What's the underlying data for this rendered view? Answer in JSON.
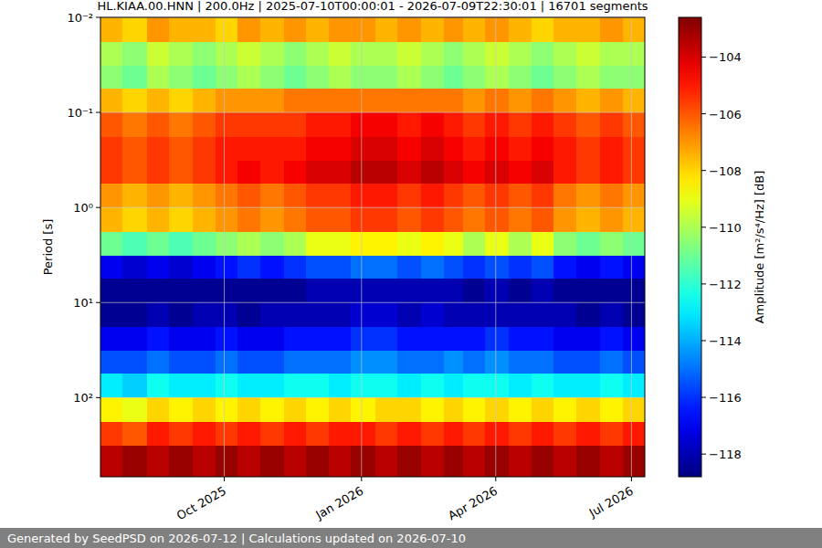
{
  "chart_data": {
    "type": "heatmap",
    "title": "HL.KIAA.00.HNN | 200.0Hz | 2025-07-10T00:00:01 - 2026-07-09T22:30:01 | 16701 segments",
    "y_label": "Period [s]",
    "footer": "Generated by SeedPSD on 2026-07-12 | Calculations updated on 2026-07-10",
    "log": "y",
    "grid": true,
    "xlim": [
      "2025-07-10T00:00:01",
      "2026-07-09T22:30:01"
    ],
    "xticks": [
      {
        "value": "2025-10-01",
        "label": "Oct 2025"
      },
      {
        "value": "2026-01-01",
        "label": "Jan 2026"
      },
      {
        "value": "2026-04-01",
        "label": "Apr 2026"
      },
      {
        "value": "2026-07-01",
        "label": "Jul 2026"
      }
    ],
    "ylim": [
      680,
      0.01
    ],
    "yticks": [
      {
        "value": 0.01,
        "label": "10⁻²"
      },
      {
        "value": 0.1,
        "label": "10⁻¹"
      },
      {
        "value": 1,
        "label": "10⁰"
      },
      {
        "value": 10,
        "label": "10¹"
      },
      {
        "value": 100,
        "label": "10²"
      }
    ],
    "x_edges": [
      "2025-07-10T00:00:01",
      "2025-07-25",
      "2025-08-10",
      "2025-08-25",
      "2025-09-10",
      "2025-09-25",
      "2025-10-10",
      "2025-10-25",
      "2025-11-10",
      "2025-11-25",
      "2025-12-10",
      "2025-12-25",
      "2026-01-10",
      "2026-01-25",
      "2026-02-10",
      "2026-02-25",
      "2026-03-10",
      "2026-03-25",
      "2026-04-10",
      "2026-04-25",
      "2026-05-10",
      "2026-05-25",
      "2026-06-10",
      "2026-06-25",
      "2026-07-09T22:30:01"
    ],
    "y_edges": [
      0.01,
      0.018,
      0.032,
      0.056,
      0.1,
      0.18,
      0.32,
      0.56,
      1,
      1.8,
      3.2,
      5.6,
      10,
      18,
      32,
      56,
      100,
      180,
      320,
      680
    ],
    "cells": [
      [
        -107.5,
        -108,
        -107,
        -107.5,
        -107.5,
        -108,
        -107,
        -107.5,
        -107,
        -107.5,
        -107,
        -107,
        -107.5,
        -107,
        -107.5,
        -107,
        -107.5,
        -107,
        -107.5,
        -108,
        -107.5,
        -107.5,
        -107,
        -107.5
      ],
      [
        -110,
        -110.5,
        -109.5,
        -110,
        -110.5,
        -110,
        -109.5,
        -110,
        -110.5,
        -110,
        -109.5,
        -110,
        -110,
        -109.5,
        -110,
        -110.5,
        -110,
        -109.5,
        -110,
        -110.5,
        -110,
        -109.5,
        -110,
        -110
      ],
      [
        -110.5,
        -111,
        -110,
        -110.5,
        -111,
        -110.5,
        -110,
        -110.5,
        -111,
        -110.5,
        -110,
        -110.5,
        -110.5,
        -110,
        -110.5,
        -111,
        -110.5,
        -110,
        -110.5,
        -111,
        -110.5,
        -110,
        -110.5,
        -110.5
      ],
      [
        -107.5,
        -108,
        -107.5,
        -108,
        -107.5,
        -107,
        -107,
        -107,
        -106.5,
        -106.5,
        -106.5,
        -106.5,
        -106.5,
        -106.5,
        -106.5,
        -106.5,
        -107,
        -106.5,
        -107,
        -106.5,
        -107,
        -107.5,
        -107,
        -107.5
      ],
      [
        -106,
        -106.5,
        -106,
        -106.5,
        -106,
        -105.5,
        -105.5,
        -105.5,
        -105.5,
        -105,
        -105,
        -104.5,
        -104.5,
        -105,
        -104.5,
        -105,
        -105.5,
        -105,
        -105.5,
        -105,
        -105.5,
        -106,
        -105.5,
        -106
      ],
      [
        -105.5,
        -106,
        -105.5,
        -106,
        -105.5,
        -105,
        -105,
        -105,
        -105,
        -104.5,
        -104.5,
        -104,
        -104,
        -104.5,
        -104,
        -104.5,
        -105,
        -104.5,
        -105,
        -104.5,
        -105,
        -105.5,
        -105,
        -105.5
      ],
      [
        -105.5,
        -106,
        -105.5,
        -106,
        -105.5,
        -105,
        -104.5,
        -105,
        -104.5,
        -104,
        -104,
        -103.5,
        -103.5,
        -104,
        -103.5,
        -104,
        -104.5,
        -104,
        -104.5,
        -104,
        -105,
        -105.5,
        -105,
        -105.5
      ],
      [
        -107,
        -107.5,
        -107,
        -107.5,
        -107,
        -106.5,
        -106,
        -106.5,
        -106,
        -105.5,
        -105.5,
        -105,
        -105,
        -105.5,
        -105,
        -105.5,
        -106,
        -105.5,
        -106,
        -105.5,
        -106.5,
        -107,
        -106.5,
        -107
      ],
      [
        -107.5,
        -108,
        -107.5,
        -108,
        -107.5,
        -107,
        -106.5,
        -107,
        -106.5,
        -106,
        -106,
        -105.5,
        -105.5,
        -106,
        -105.5,
        -106,
        -106.5,
        -106,
        -106.5,
        -106,
        -107,
        -107.5,
        -107,
        -107.5
      ],
      [
        -111,
        -111.5,
        -111,
        -111.5,
        -111,
        -110.5,
        -110,
        -110.5,
        -110,
        -109,
        -109,
        -108.5,
        -108.5,
        -109,
        -108.5,
        -109,
        -110,
        -109,
        -110,
        -109,
        -110.5,
        -111,
        -110.5,
        -111
      ],
      [
        -117,
        -117.5,
        -117,
        -117.5,
        -117,
        -116.5,
        -116,
        -116.5,
        -116,
        -115.5,
        -115.5,
        -115,
        -115,
        -115.5,
        -115,
        -115.5,
        -116,
        -115.5,
        -116,
        -115.5,
        -116.5,
        -117,
        -116.5,
        -117
      ],
      [
        -118.5,
        -118.5,
        -118.5,
        -118.5,
        -118.5,
        -118.5,
        -118.5,
        -118.5,
        -118.5,
        -118,
        -118,
        -118,
        -118,
        -118,
        -118,
        -118,
        -118.5,
        -118,
        -118.5,
        -118,
        -118.5,
        -118.5,
        -118.5,
        -118.5
      ],
      [
        -118.5,
        -118.5,
        -118,
        -118.5,
        -118,
        -118,
        -118.5,
        -118,
        -118,
        -118,
        -118,
        -117.5,
        -117.5,
        -118,
        -117.5,
        -118,
        -118,
        -118,
        -118,
        -118,
        -118,
        -118.5,
        -118,
        -118.5
      ],
      [
        -117,
        -117,
        -116.5,
        -117,
        -117,
        -116.5,
        -117,
        -117,
        -116.5,
        -116.5,
        -116.5,
        -116,
        -116,
        -116.5,
        -116.5,
        -116.5,
        -116.5,
        -116,
        -116.5,
        -116.5,
        -117,
        -117,
        -116.5,
        -117
      ],
      [
        -115.5,
        -115.5,
        -115,
        -115.5,
        -115.5,
        -115,
        -115.5,
        -115.5,
        -115,
        -115,
        -115,
        -114.5,
        -114.5,
        -115,
        -115,
        -114.5,
        -115,
        -114.5,
        -115,
        -115,
        -115.5,
        -115.5,
        -115,
        -115.5
      ],
      [
        -113,
        -113.5,
        -112.5,
        -113,
        -113,
        -112.5,
        -113,
        -113,
        -112.5,
        -112.5,
        -113,
        -112.5,
        -112.5,
        -113,
        -112.5,
        -113,
        -112.5,
        -112.5,
        -113,
        -112.5,
        -113,
        -113,
        -112.5,
        -113
      ],
      [
        -108.5,
        -109,
        -108,
        -108.5,
        -108,
        -108.5,
        -108,
        -108.5,
        -108,
        -108.5,
        -108,
        -108.5,
        -108,
        -108,
        -108.5,
        -108,
        -108.5,
        -108,
        -108.5,
        -108,
        -108.5,
        -108,
        -108.5,
        -108
      ],
      [
        -105.5,
        -106,
        -105,
        -105.5,
        -105,
        -105.5,
        -105,
        -105.5,
        -105,
        -105.5,
        -105,
        -105,
        -105.5,
        -105,
        -105.5,
        -105,
        -105.5,
        -105,
        -105.5,
        -105,
        -105.5,
        -105,
        -105.5,
        -105
      ],
      [
        -103.5,
        -103,
        -103.5,
        -103,
        -103.5,
        -103,
        -103.5,
        -103,
        -103.5,
        -103,
        -103.5,
        -103,
        -103.5,
        -103,
        -103.5,
        -103,
        -103.5,
        -103,
        -103.5,
        -103,
        -103.5,
        -103,
        -103.5,
        -103
      ]
    ],
    "colorbar": {
      "label": "Amplitude [m²/s⁴/Hz] [dB]",
      "lim": [
        -118.8,
        -102.6
      ],
      "ticks": [
        {
          "value": -104,
          "label": "−104"
        },
        {
          "value": -106,
          "label": "−106"
        },
        {
          "value": -108,
          "label": "−108"
        },
        {
          "value": -110,
          "label": "−110"
        },
        {
          "value": -112,
          "label": "−112"
        },
        {
          "value": -114,
          "label": "−114"
        },
        {
          "value": -116,
          "label": "−116"
        },
        {
          "value": -118,
          "label": "−118"
        }
      ]
    }
  }
}
